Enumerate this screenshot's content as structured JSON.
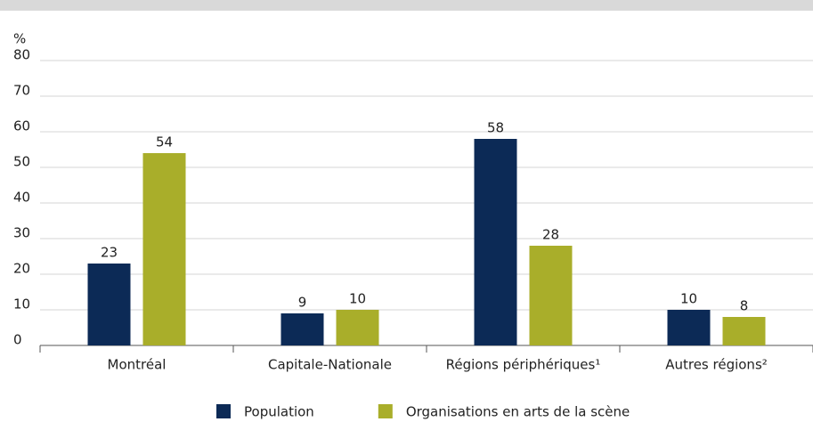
{
  "chart_data": {
    "type": "bar",
    "y_label": "%",
    "categories": [
      "Montréal",
      "Capitale-Nationale",
      "Régions périphériques¹",
      "Autres régions²"
    ],
    "series": [
      {
        "name": "Population",
        "color": "#0c2a56",
        "values": [
          23,
          9,
          58,
          10
        ]
      },
      {
        "name": "Organisations en arts de la scène",
        "color": "#a9ae2a",
        "values": [
          54,
          10,
          28,
          8
        ]
      }
    ],
    "ylim": [
      0,
      80
    ],
    "yticks": [
      0,
      10,
      20,
      30,
      40,
      50,
      60,
      70,
      80
    ],
    "grid": true,
    "legend": "bottom"
  }
}
